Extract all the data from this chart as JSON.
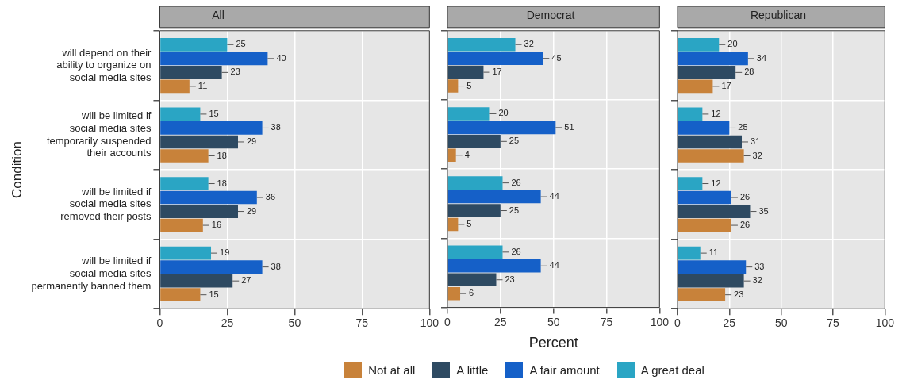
{
  "chart_data": [
    {
      "type": "bar",
      "orientation": "horizontal",
      "title": "All",
      "ylabel": "Condition",
      "categories": [
        "will depend on their ability to organize on social media sites",
        "will be limited if social media sites temporarily suspended their accounts",
        "will be limited if social media sites removed their posts",
        "will be limited if social media sites permanently banned them"
      ],
      "xlim": [
        0,
        100
      ],
      "xticks": [
        0,
        25,
        50,
        75,
        100
      ],
      "grid": true,
      "data_labels": true,
      "series": [
        {
          "color": "#c8823a",
          "values": [
            11,
            18,
            16,
            15
          ]
        },
        {
          "color": "#2e4a62",
          "values": [
            23,
            29,
            29,
            27
          ]
        },
        {
          "color": "#1560c8",
          "values": [
            40,
            38,
            36,
            38
          ]
        },
        {
          "color": "#2aa5c4",
          "values": [
            25,
            15,
            18,
            19
          ]
        }
      ]
    },
    {
      "type": "bar",
      "orientation": "horizontal",
      "title": "Democrat",
      "xlabel": "Percent",
      "categories": [
        null,
        null,
        null,
        null
      ],
      "tick_labels": "x",
      "xlim": [
        0,
        100
      ],
      "xticks": [
        0,
        25,
        50,
        75,
        100
      ],
      "grid": true,
      "data_labels": true,
      "legend": "bottom",
      "series": [
        {
          "name": "Not at all",
          "color": "#c8823a",
          "values": [
            5,
            4,
            5,
            6
          ]
        },
        {
          "name": "A little",
          "color": "#2e4a62",
          "values": [
            17,
            25,
            25,
            23
          ]
        },
        {
          "name": "A fair amount",
          "color": "#1560c8",
          "values": [
            45,
            51,
            44,
            44
          ]
        },
        {
          "name": "A great deal",
          "color": "#2aa5c4",
          "values": [
            32,
            20,
            26,
            26
          ]
        }
      ]
    },
    {
      "type": "bar",
      "orientation": "horizontal",
      "title": "Republican",
      "categories": [
        null,
        null,
        null,
        null
      ],
      "tick_labels": "x",
      "xlim": [
        0,
        100
      ],
      "xticks": [
        0,
        25,
        50,
        75,
        100
      ],
      "grid": true,
      "data_labels": true,
      "series": [
        {
          "color": "#c8823a",
          "values": [
            17,
            32,
            26,
            23
          ]
        },
        {
          "color": "#2e4a62",
          "values": [
            28,
            31,
            35,
            32
          ]
        },
        {
          "color": "#1560c8",
          "values": [
            34,
            25,
            26,
            33
          ]
        },
        {
          "color": "#2aa5c4",
          "values": [
            20,
            12,
            12,
            11
          ]
        }
      ]
    }
  ]
}
